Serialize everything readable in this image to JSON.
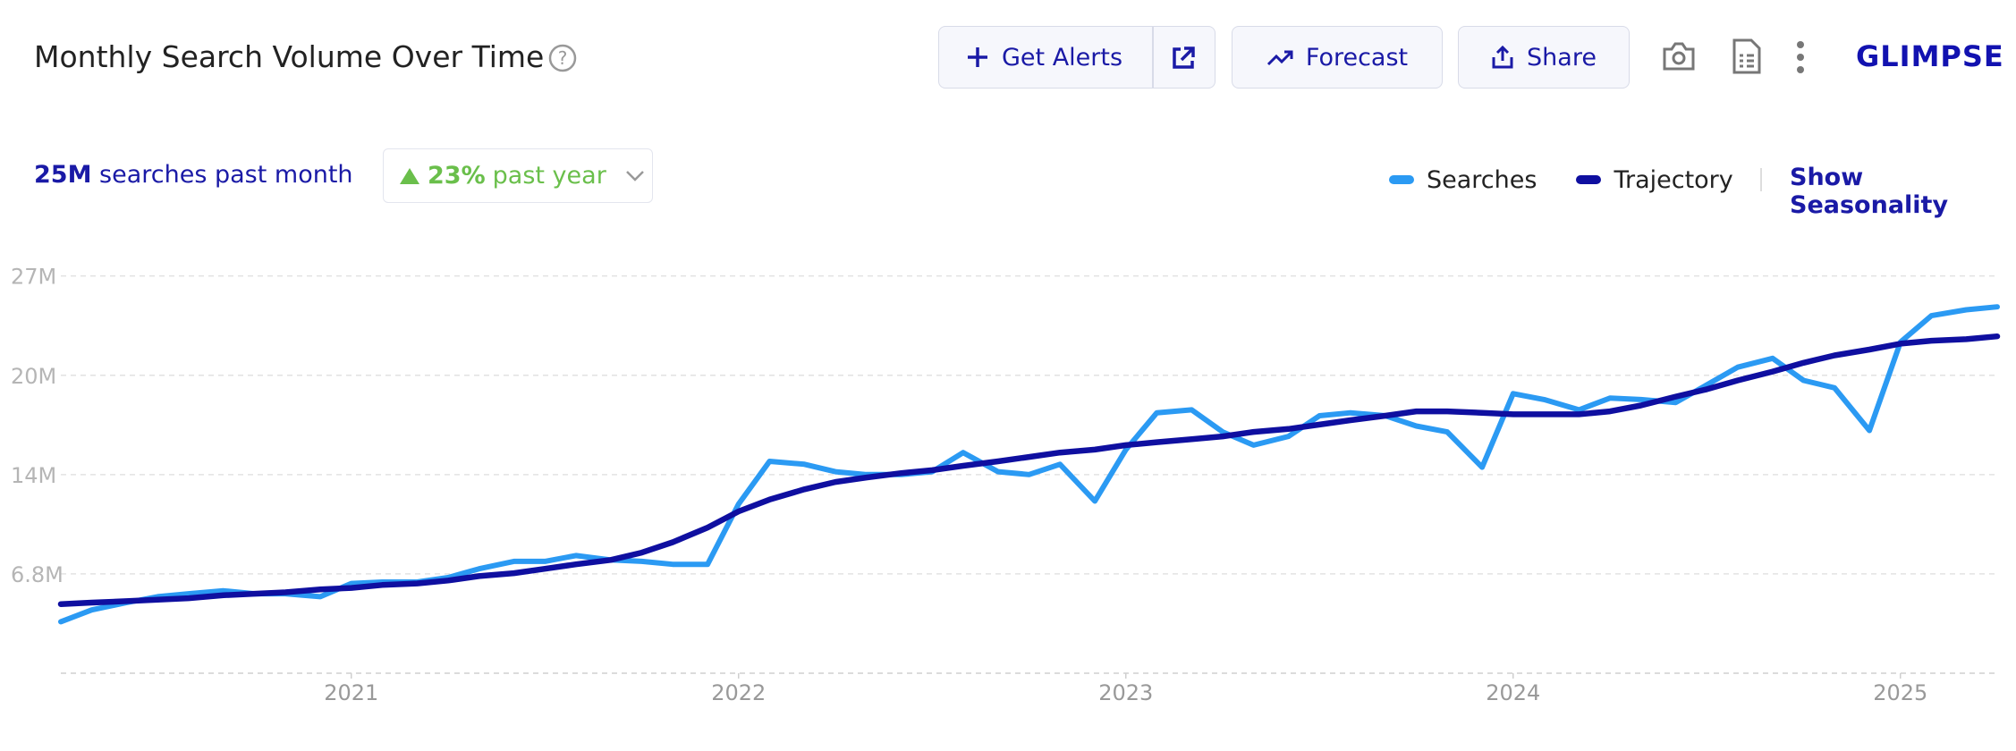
{
  "header": {
    "title": "Monthly Search Volume Over Time",
    "buttons": [
      "Get Alerts",
      "Forecast",
      "Share"
    ],
    "logo": "GLIMPSE"
  },
  "summary": {
    "volume": "25M",
    "volume_text": "searches past month",
    "growth": "23%",
    "growth_text": "past year"
  },
  "show_seasonality": "Show Seasonality",
  "chart_data": {
    "type": "line",
    "x": [
      2020.25,
      2020.33,
      2020.42,
      2020.5,
      2020.58,
      2020.67,
      2020.75,
      2020.83,
      2020.92,
      2021,
      2021.08,
      2021.17,
      2021.25,
      2021.33,
      2021.42,
      2021.5,
      2021.58,
      2021.67,
      2021.75,
      2021.83,
      2021.92,
      2022,
      2022.08,
      2022.17,
      2022.25,
      2022.33,
      2022.42,
      2022.5,
      2022.58,
      2022.67,
      2022.75,
      2022.83,
      2022.92,
      2023,
      2023.08,
      2023.17,
      2023.25,
      2023.33,
      2023.42,
      2023.5,
      2023.58,
      2023.67,
      2023.75,
      2023.83,
      2023.92,
      2024,
      2024.08,
      2024.17,
      2024.25,
      2024.33,
      2024.42,
      2024.5,
      2024.58,
      2024.67,
      2024.75,
      2024.83,
      2024.92,
      2025,
      2025.08,
      2025.17,
      2025.25
    ],
    "series": [
      {
        "name": "Searches",
        "color": "#2b9af3",
        "values": [
          3.5,
          4.3,
          4.8,
          5.2,
          5.4,
          5.6,
          5.4,
          5.4,
          5.2,
          6.1,
          6.2,
          6.2,
          6.5,
          7.1,
          7.6,
          7.6,
          8.0,
          7.7,
          7.6,
          7.4,
          7.4,
          11.5,
          14.4,
          14.2,
          13.7,
          13.5,
          13.5,
          13.7,
          15.0,
          13.7,
          13.5,
          14.2,
          11.7,
          15.2,
          17.7,
          17.9,
          16.4,
          15.5,
          16.1,
          17.5,
          17.7,
          17.5,
          16.8,
          16.4,
          14.0,
          19.0,
          18.6,
          17.9,
          18.7,
          18.6,
          18.4,
          19.6,
          20.8,
          21.4,
          19.9,
          19.4,
          16.5,
          22.5,
          24.3,
          24.7,
          24.9
        ]
      },
      {
        "name": "Trajectory",
        "color": "#0f0fa0",
        "values": [
          4.7,
          4.8,
          4.9,
          5.0,
          5.1,
          5.3,
          5.4,
          5.5,
          5.7,
          5.8,
          6.0,
          6.1,
          6.3,
          6.6,
          6.8,
          7.1,
          7.4,
          7.7,
          8.2,
          8.9,
          9.9,
          11.0,
          11.8,
          12.5,
          13.0,
          13.3,
          13.6,
          13.8,
          14.1,
          14.4,
          14.7,
          15.0,
          15.2,
          15.5,
          15.7,
          15.9,
          16.1,
          16.4,
          16.6,
          16.9,
          17.2,
          17.5,
          17.8,
          17.8,
          17.7,
          17.6,
          17.6,
          17.6,
          17.8,
          18.2,
          18.8,
          19.3,
          19.9,
          20.5,
          21.1,
          21.6,
          22.0,
          22.4,
          22.6,
          22.7,
          22.9
        ]
      }
    ],
    "xlim": [
      2020.25,
      2025.25
    ],
    "xticks": [
      2021,
      2022,
      2023,
      2024,
      2025
    ],
    "ylim": [
      0,
      28.5
    ],
    "yticks": [
      {
        "value": 6.75,
        "label": "6.8M"
      },
      {
        "value": 13.5,
        "label": "14M"
      },
      {
        "value": 20.25,
        "label": "20M"
      },
      {
        "value": 27,
        "label": "27M"
      }
    ],
    "grid": true
  }
}
